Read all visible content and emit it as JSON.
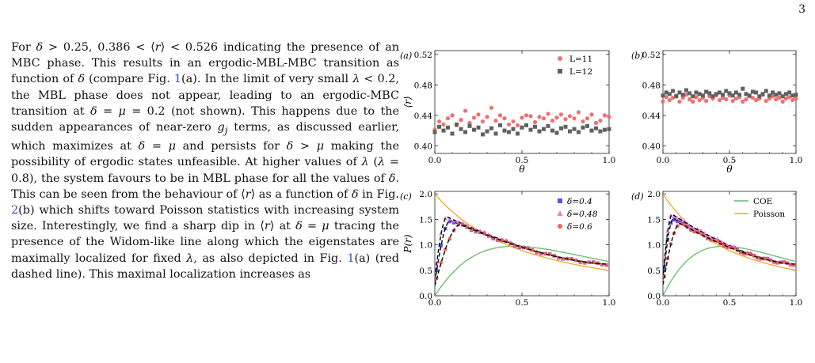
{
  "page": {
    "number": "3"
  },
  "body_text": {
    "paragraph_html": "For <i>δ</i> &gt; 0.25, 0.386 &lt; ⟨<i>r</i>⟩ &lt; 0.526 indicating the presence of an MBC phase. This results in an ergodic-MBL-MBC transition as function of <i>δ</i> (compare Fig. <span class=\"fig-ref\">1</span>(a). In the limit of very small <i>λ</i> &lt; 0.2, the MBL phase does not appear, leading to an ergodic-MBC transition at <i>δ</i> = <i>μ</i> = 0.2 (not shown). This happens due to the sudden appearances of near-zero <i>g<sub>j</sub></i> terms, as discussed earlier, which maximizes at <i>δ</i> = <i>μ</i> and persists for <i>δ</i> &gt; <i>μ</i> making the possibility of ergodic states unfeasible. At higher values of <i>λ</i> (<i>λ</i> = 0.8), the system favours to be in MBL phase for all the values of <i>δ</i>. This can be seen from the behaviour of ⟨<i>r</i>⟩ as a function of <i>δ</i> in Fig. <span class=\"fig-ref\">2</span>(b) which shifts toward Poisson statistics with increasing system size. Interestingly, we find a sharp dip in ⟨<i>r</i>⟩ at <i>δ</i> = <i>μ</i> tracing the presence of the Widom-like line along which the eigenstates are maximally localized for fixed <i>λ</i>, as also depicted in Fig. <span class=\"fig-ref\">1</span>(a) (red dashed line). This maximal localization increases as"
  },
  "chart_data": [
    {
      "panel": "(a)",
      "type": "scatter",
      "xlabel": "θ",
      "ylabel": "⟨r⟩",
      "xlim": [
        0,
        1
      ],
      "ylim": [
        0.39,
        0.525
      ],
      "xticks": [
        0.0,
        0.5,
        1.0
      ],
      "yticks": [
        0.4,
        0.44,
        0.48,
        0.52
      ],
      "legend": "top-right",
      "series": [
        {
          "name": "L=11",
          "color": "#f07070",
          "marker": "circle",
          "x": [
            0.0,
            0.025,
            0.05,
            0.075,
            0.1,
            0.125,
            0.15,
            0.175,
            0.2,
            0.225,
            0.25,
            0.275,
            0.3,
            0.325,
            0.35,
            0.375,
            0.4,
            0.425,
            0.45,
            0.475,
            0.5,
            0.525,
            0.55,
            0.575,
            0.6,
            0.625,
            0.65,
            0.675,
            0.7,
            0.725,
            0.75,
            0.775,
            0.8,
            0.825,
            0.85,
            0.875,
            0.9,
            0.925,
            0.95,
            0.975,
            1.0
          ],
          "y": [
            0.421,
            0.432,
            0.428,
            0.436,
            0.44,
            0.427,
            0.434,
            0.446,
            0.43,
            0.437,
            0.441,
            0.432,
            0.438,
            0.45,
            0.433,
            0.44,
            0.436,
            0.428,
            0.432,
            0.427,
            0.437,
            0.44,
            0.439,
            0.431,
            0.438,
            0.436,
            0.442,
            0.433,
            0.437,
            0.441,
            0.435,
            0.439,
            0.436,
            0.444,
            0.432,
            0.436,
            0.441,
            0.43,
            0.433,
            0.44,
            0.438
          ]
        },
        {
          "name": "L=12",
          "color": "#606060",
          "marker": "square",
          "x": [
            0.0,
            0.025,
            0.05,
            0.075,
            0.1,
            0.125,
            0.15,
            0.175,
            0.2,
            0.225,
            0.25,
            0.275,
            0.3,
            0.325,
            0.35,
            0.375,
            0.4,
            0.425,
            0.45,
            0.475,
            0.5,
            0.525,
            0.55,
            0.575,
            0.6,
            0.625,
            0.65,
            0.675,
            0.7,
            0.725,
            0.75,
            0.775,
            0.8,
            0.825,
            0.85,
            0.875,
            0.9,
            0.925,
            0.95,
            0.975,
            1.0
          ],
          "y": [
            0.418,
            0.425,
            0.42,
            0.424,
            0.416,
            0.428,
            0.422,
            0.418,
            0.426,
            0.421,
            0.424,
            0.415,
            0.419,
            0.423,
            0.416,
            0.427,
            0.42,
            0.418,
            0.422,
            0.416,
            0.424,
            0.427,
            0.421,
            0.425,
            0.419,
            0.422,
            0.426,
            0.42,
            0.417,
            0.423,
            0.425,
            0.419,
            0.422,
            0.418,
            0.424,
            0.426,
            0.42,
            0.423,
            0.419,
            0.421,
            0.422
          ]
        }
      ]
    },
    {
      "panel": "(b)",
      "type": "scatter",
      "xlabel": "θ",
      "ylabel": "",
      "xlim": [
        0,
        1
      ],
      "ylim": [
        0.39,
        0.525
      ],
      "xticks": [
        0.0,
        0.5,
        1.0
      ],
      "yticks": [
        0.4,
        0.44,
        0.48,
        0.52
      ],
      "series": [
        {
          "name": "L=11",
          "color": "#f07070",
          "marker": "circle",
          "x": [
            0.0,
            0.025,
            0.05,
            0.075,
            0.1,
            0.125,
            0.15,
            0.175,
            0.2,
            0.225,
            0.25,
            0.275,
            0.3,
            0.325,
            0.35,
            0.375,
            0.4,
            0.425,
            0.45,
            0.475,
            0.5,
            0.525,
            0.55,
            0.575,
            0.6,
            0.625,
            0.65,
            0.675,
            0.7,
            0.725,
            0.75,
            0.775,
            0.8,
            0.825,
            0.85,
            0.875,
            0.9,
            0.925,
            0.95,
            0.975,
            1.0
          ],
          "y": [
            0.458,
            0.464,
            0.46,
            0.463,
            0.466,
            0.458,
            0.463,
            0.467,
            0.461,
            0.458,
            0.464,
            0.46,
            0.463,
            0.459,
            0.465,
            0.462,
            0.466,
            0.46,
            0.463,
            0.461,
            0.466,
            0.459,
            0.462,
            0.464,
            0.458,
            0.461,
            0.465,
            0.463,
            0.46,
            0.462,
            0.467,
            0.459,
            0.462,
            0.465,
            0.461,
            0.463,
            0.458,
            0.462,
            0.464,
            0.46,
            0.462
          ]
        },
        {
          "name": "L=12",
          "color": "#606060",
          "marker": "square",
          "x": [
            0.0,
            0.025,
            0.05,
            0.075,
            0.1,
            0.125,
            0.15,
            0.175,
            0.2,
            0.225,
            0.25,
            0.275,
            0.3,
            0.325,
            0.35,
            0.375,
            0.4,
            0.425,
            0.45,
            0.475,
            0.5,
            0.525,
            0.55,
            0.575,
            0.6,
            0.625,
            0.65,
            0.675,
            0.7,
            0.725,
            0.75,
            0.775,
            0.8,
            0.825,
            0.85,
            0.875,
            0.9,
            0.925,
            0.95,
            0.975,
            1.0
          ],
          "y": [
            0.466,
            0.47,
            0.468,
            0.472,
            0.465,
            0.47,
            0.467,
            0.473,
            0.469,
            0.465,
            0.47,
            0.468,
            0.466,
            0.471,
            0.469,
            0.465,
            0.468,
            0.47,
            0.467,
            0.472,
            0.469,
            0.466,
            0.47,
            0.467,
            0.475,
            0.468,
            0.466,
            0.471,
            0.47,
            0.465,
            0.468,
            0.472,
            0.466,
            0.47,
            0.467,
            0.469,
            0.465,
            0.468,
            0.47,
            0.466,
            0.467
          ]
        }
      ]
    },
    {
      "panel": "(c)",
      "type": "line",
      "xlabel": "r",
      "ylabel": "P(r)",
      "xlim": [
        0,
        1
      ],
      "ylim": [
        0,
        2.05
      ],
      "xticks": [
        0.0,
        0.5,
        1.0
      ],
      "yticks": [
        0.0,
        0.5,
        1.0,
        1.5,
        2.0
      ],
      "legend": "top-right",
      "series": [
        {
          "name": "δ=0.4",
          "color": "#5555e8",
          "marker": "square",
          "peak": 1.48,
          "peak_r": 0.09
        },
        {
          "name": "δ=0.48",
          "color": "#ee77dd",
          "marker": "triangle",
          "peak": 1.55,
          "peak_r": 0.07
        },
        {
          "name": "δ=0.6",
          "color": "#f06060",
          "marker": "circle",
          "peak": 1.4,
          "peak_r": 0.15
        }
      ],
      "reference_curves": [
        "COE",
        "Poisson"
      ]
    },
    {
      "panel": "(d)",
      "type": "line",
      "xlabel": "r",
      "ylabel": "",
      "xlim": [
        0,
        1
      ],
      "ylim": [
        0,
        2.05
      ],
      "xticks": [
        0.0,
        0.5,
        1.0
      ],
      "yticks": [
        0.0,
        0.5,
        1.0,
        1.5,
        2.0
      ],
      "legend": "top-right",
      "series": [
        {
          "name": "δ=0.4",
          "color": "#5555e8",
          "marker": "square",
          "peak": 1.52,
          "peak_r": 0.08
        },
        {
          "name": "δ=0.48",
          "color": "#ee77dd",
          "marker": "triangle",
          "peak": 1.6,
          "peak_r": 0.07
        },
        {
          "name": "δ=0.6",
          "color": "#f06060",
          "marker": "circle",
          "peak": 1.42,
          "peak_r": 0.13
        }
      ],
      "reference_series": [
        {
          "name": "COE",
          "color": "#66bb66"
        },
        {
          "name": "Poisson",
          "color": "#f5a623"
        }
      ]
    }
  ]
}
